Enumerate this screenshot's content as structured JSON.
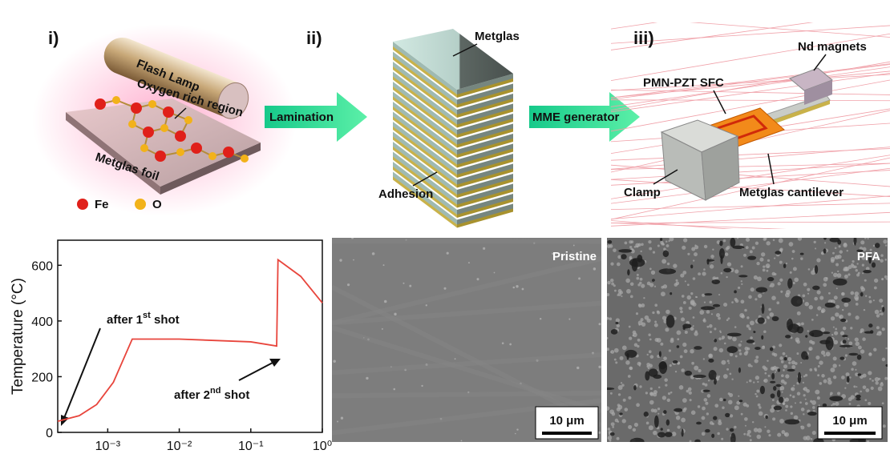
{
  "panels": {
    "i": {
      "label": "i)",
      "flash_lamp": "Flash Lamp",
      "oxygen_region": "Oxygen rich region",
      "foil": "Metglas foil",
      "legend": [
        "Fe",
        "O"
      ]
    },
    "ii": {
      "label": "ii)",
      "top": "Metglas",
      "bottom": "Adhesion"
    },
    "iii": {
      "label": "iii)",
      "magnets": "Nd magnets",
      "sfc": "PMN-PZT SFC",
      "clamp": "Clamp",
      "cantilever": "Metglas cantilever"
    }
  },
  "arrows": [
    "Lamination",
    "MME generator"
  ],
  "sem": [
    {
      "label": "Pristine",
      "scale_bar": "10 μm"
    },
    {
      "label": "PFA",
      "scale_bar": "10 μm"
    }
  ],
  "chart_data": {
    "type": "line",
    "y_label": "Temperature (°C)",
    "log_x": true,
    "xlim": [
      0.0002,
      1
    ],
    "ylim": [
      0,
      690
    ],
    "xticks": [
      {
        "value": 0.001,
        "label": "10⁻³"
      },
      {
        "value": 0.01,
        "label": "10⁻²"
      },
      {
        "value": 0.1,
        "label": "10⁻¹"
      },
      {
        "value": 1,
        "label": "10⁰"
      }
    ],
    "yticks": [
      0,
      200,
      400,
      600
    ],
    "series": [
      {
        "color": "#e8453c",
        "x": [
          0.0002,
          0.0004,
          0.0007,
          0.0012,
          0.0022,
          0.01,
          0.1,
          0.23,
          0.24,
          0.5,
          1
        ],
        "values": [
          40,
          60,
          100,
          180,
          335,
          335,
          325,
          310,
          620,
          560,
          465
        ]
      }
    ],
    "annotations": [
      [
        "after 1",
        "st",
        " shot"
      ],
      [
        "after 2",
        "nd",
        " shot"
      ]
    ]
  }
}
